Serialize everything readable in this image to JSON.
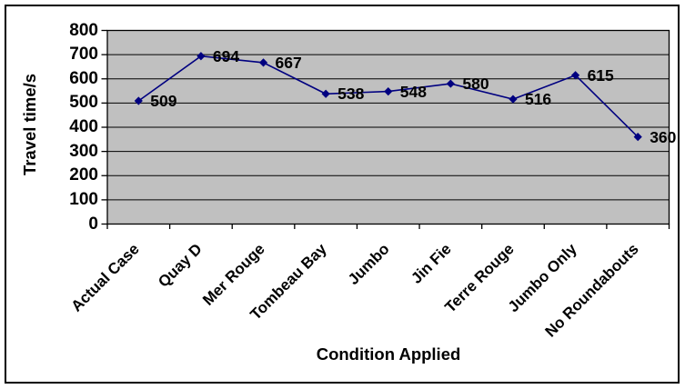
{
  "chart_data": {
    "type": "line",
    "title": "",
    "xlabel": "Condition Applied",
    "ylabel": "Travel time/s",
    "categories": [
      "Actual Case",
      "Quay D",
      "Mer Rouge",
      "Tombeau Bay",
      "Jumbo",
      "Jin Fie",
      "Terre Rouge",
      "Jumbo Only",
      "No Roundabouts"
    ],
    "values": [
      509,
      694,
      667,
      538,
      548,
      580,
      516,
      615,
      360
    ],
    "data_labels": [
      "509",
      "694",
      "667",
      "538",
      "548",
      "580",
      "516",
      "615",
      "360"
    ],
    "ylim": [
      0,
      800
    ],
    "ytick_interval": 100,
    "ytick_labels": [
      "0",
      "100",
      "200",
      "300",
      "400",
      "500",
      "600",
      "700",
      "800"
    ],
    "grid": "horizontal",
    "legend": "none",
    "marker": "diamond",
    "colors": {
      "line": "#000080",
      "marker": "#000080",
      "plot_background": "#C0C0C0",
      "gridline": "#000000",
      "axis": "#000000",
      "text": "#000000",
      "frame_border": "#000000",
      "background": "#FFFFFF"
    }
  }
}
